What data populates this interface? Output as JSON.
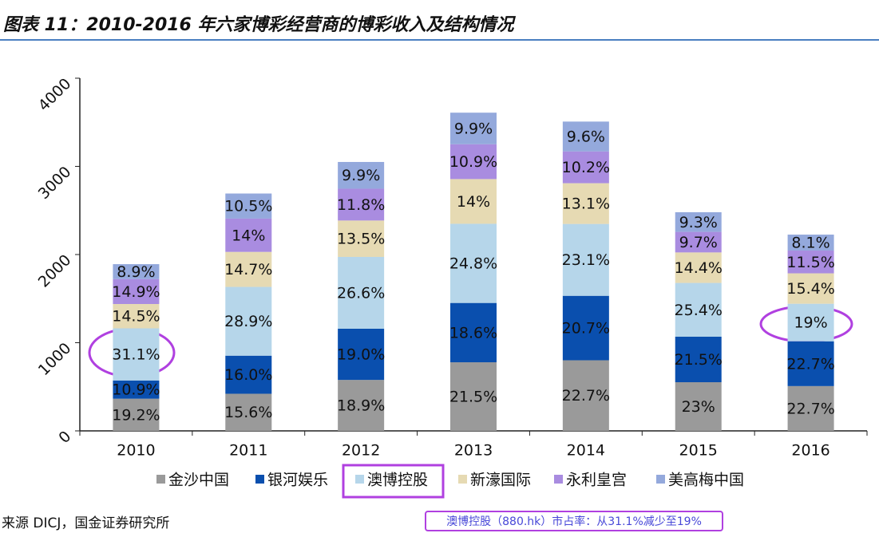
{
  "chart_data": {
    "type": "stacked_bar",
    "title": "图表 11：2010-2016 年六家博彩经营商的博彩收入及结构情况",
    "source": "来源 DICJ，国金证券研究所",
    "annotation": "澳博控股（880.hk）市占率：从31.1%减少至19%",
    "categories": [
      "2010",
      "2011",
      "2012",
      "2013",
      "2014",
      "2015",
      "2016"
    ],
    "ylim": [
      0,
      4000
    ],
    "yticks": [
      0,
      1000,
      2000,
      3000,
      4000
    ],
    "grid": false,
    "legend": "bottom",
    "series": [
      {
        "name": "金沙中国",
        "color": "#9a9a9a",
        "values": [
          365,
          421,
          578,
          778,
          801,
          552,
          508
        ],
        "share_labels": [
          "19.2%",
          "15.6%",
          "18.9%",
          "21.5%",
          "22.7%",
          "23%",
          "22.7%"
        ]
      },
      {
        "name": "银河娱乐",
        "color": "#0a4fae",
        "values": [
          207,
          432,
          581,
          673,
          731,
          516,
          508
        ],
        "share_labels": [
          "10.9%",
          "16.0%",
          "19.0%",
          "18.6%",
          "20.7%",
          "21.5%",
          "22.7%"
        ]
      },
      {
        "name": "澳博控股",
        "color": "#b6d6ea",
        "values": [
          591,
          780,
          814,
          898,
          815,
          610,
          426
        ],
        "share_labels": [
          "31.1%",
          "28.9%",
          "26.6%",
          "24.8%",
          "23.1%",
          "25.4%",
          "19%"
        ]
      },
      {
        "name": "新濠国际",
        "color": "#e6dab3",
        "values": [
          276,
          397,
          413,
          507,
          462,
          346,
          345
        ],
        "share_labels": [
          "14.5%",
          "14.7%",
          "13.5%",
          "14%",
          "13.1%",
          "14.4%",
          "15.4%"
        ]
      },
      {
        "name": "永利皇宫",
        "color": "#a98ce0",
        "values": [
          283,
          378,
          361,
          395,
          360,
          233,
          258
        ],
        "share_labels": [
          "14.9%",
          "14%",
          "11.8%",
          "10.9%",
          "10.2%",
          "9.7%",
          "11.5%"
        ]
      },
      {
        "name": "美高梅中国",
        "color": "#94a9dc",
        "values": [
          169,
          284,
          303,
          358,
          339,
          223,
          181
        ],
        "share_labels": [
          "8.9%",
          "10.5%",
          "9.9%",
          "9.9%",
          "9.6%",
          "9.3%",
          "8.1%"
        ]
      }
    ]
  }
}
